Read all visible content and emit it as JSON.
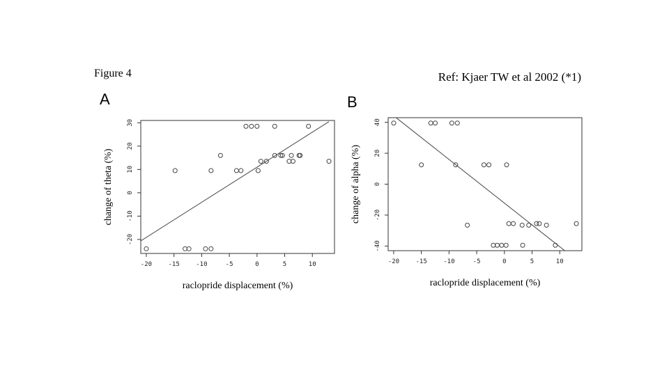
{
  "figure_label": "Figure 4",
  "reference": "Ref: Kjaer TW et al 2002 (*1)",
  "chart_data": [
    {
      "type": "scatter",
      "panel": "A",
      "xlabel": "raclopride displacement (%)",
      "ylabel": "change of theta (%)",
      "xlim": [
        -21,
        14
      ],
      "ylim": [
        -26,
        31
      ],
      "xticks": [
        -20,
        -15,
        -10,
        -5,
        0,
        5,
        10
      ],
      "yticks": [
        -20,
        -10,
        0,
        10,
        20,
        30
      ],
      "points": [
        [
          -20,
          -24
        ],
        [
          -14.8,
          9.5
        ],
        [
          -13,
          -24
        ],
        [
          -12.3,
          -24
        ],
        [
          -9.3,
          -24
        ],
        [
          -8.3,
          -24
        ],
        [
          -8.3,
          9.5
        ],
        [
          -6.6,
          16
        ],
        [
          -3.7,
          9.5
        ],
        [
          -2.9,
          9.5
        ],
        [
          -2,
          28.5
        ],
        [
          -1,
          28.5
        ],
        [
          0,
          28.5
        ],
        [
          0.2,
          9.5
        ],
        [
          0.7,
          13.5
        ],
        [
          1.7,
          13.5
        ],
        [
          3.2,
          16
        ],
        [
          3.2,
          28.5
        ],
        [
          4.3,
          16
        ],
        [
          4.6,
          16
        ],
        [
          5.8,
          13.5
        ],
        [
          6.2,
          16
        ],
        [
          6.5,
          13.5
        ],
        [
          7.6,
          16
        ],
        [
          7.8,
          16
        ],
        [
          9.3,
          28.5
        ],
        [
          13,
          13.5
        ]
      ],
      "fit_line": {
        "x": [
          -21,
          13
        ],
        "y": [
          -20.6,
          30.5
        ]
      }
    },
    {
      "type": "scatter",
      "panel": "B",
      "xlabel": "raclopride displacement (%)",
      "ylabel": "change of alpha (%)",
      "xlim": [
        -21,
        14
      ],
      "ylim": [
        -43,
        43
      ],
      "xticks": [
        -20,
        -15,
        -10,
        -5,
        0,
        5,
        10
      ],
      "yticks": [
        -40,
        -20,
        0,
        20,
        40
      ],
      "points": [
        [
          -20,
          39.5
        ],
        [
          -15,
          12.5
        ],
        [
          -13.3,
          39.5
        ],
        [
          -12.5,
          39.5
        ],
        [
          -9.5,
          39.5
        ],
        [
          -8.5,
          39.5
        ],
        [
          -8.8,
          12.5
        ],
        [
          -6.7,
          -26.5
        ],
        [
          -3.7,
          12.5
        ],
        [
          -2.8,
          12.5
        ],
        [
          -2,
          -39.5
        ],
        [
          -1.3,
          -39.5
        ],
        [
          -0.5,
          -39.5
        ],
        [
          0.3,
          -39.5
        ],
        [
          0.4,
          12.5
        ],
        [
          0.8,
          -25.5
        ],
        [
          1.6,
          -25.5
        ],
        [
          3.2,
          -26.5
        ],
        [
          3.3,
          -39.5
        ],
        [
          4.4,
          -26.5
        ],
        [
          5.8,
          -25.5
        ],
        [
          6.3,
          -25.5
        ],
        [
          7.6,
          -26.5
        ],
        [
          9.2,
          -39.5
        ],
        [
          13,
          -25.5
        ]
      ],
      "fit_line": {
        "x": [
          -19.5,
          10.9
        ],
        "y": [
          42.8,
          -43
        ]
      }
    }
  ]
}
